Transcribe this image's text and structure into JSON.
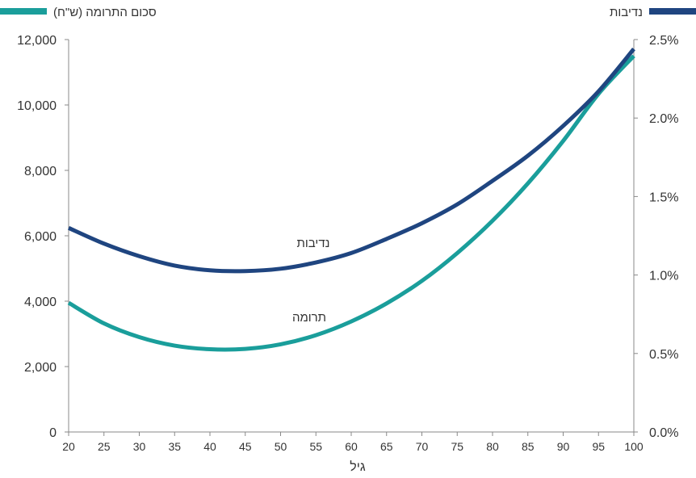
{
  "chart_data": {
    "type": "line",
    "xlabel": "גיל",
    "x_ticks": [
      "20",
      "25",
      "30",
      "35",
      "40",
      "45",
      "50",
      "55",
      "60",
      "65",
      "70",
      "75",
      "80",
      "85",
      "90",
      "95",
      "100"
    ],
    "xlim": [
      20,
      100
    ],
    "y_left": {
      "ylim": [
        0,
        12000
      ],
      "ticks": [
        0,
        2000,
        4000,
        6000,
        8000,
        10000,
        12000
      ],
      "tick_labels": [
        "0",
        "2,000",
        "4,000",
        "6,000",
        "8,000",
        "10,000",
        "12,000"
      ]
    },
    "y_right": {
      "ylim": [
        0,
        2.5
      ],
      "ticks": [
        0,
        0.5,
        1,
        1.5,
        2,
        2.5
      ],
      "tick_labels": [
        "0.0%",
        "0.5%",
        "1.0%",
        "1.5%",
        "2.0%",
        "2.5%"
      ]
    },
    "legend": {
      "left": {
        "label": "סכום התרומה (ש\"ח)",
        "color": "#1a9e9b"
      },
      "right": {
        "label": "נדיבות",
        "color": "#1f4580"
      }
    },
    "series": [
      {
        "name": "סכום התרומה (ש\"ח)",
        "axis": "left",
        "color": "#1a9e9b",
        "x": [
          20,
          25,
          30,
          35,
          40,
          45,
          50,
          55,
          60,
          65,
          70,
          75,
          80,
          85,
          90,
          95,
          100
        ],
        "values": [
          3950,
          3320,
          2900,
          2640,
          2530,
          2540,
          2680,
          2960,
          3380,
          3930,
          4620,
          5470,
          6460,
          7600,
          8900,
          10340,
          11500
        ]
      },
      {
        "name": "נדיבות",
        "axis": "right",
        "color": "#1f4580",
        "x": [
          20,
          25,
          30,
          35,
          40,
          45,
          50,
          55,
          60,
          65,
          70,
          75,
          80,
          85,
          90,
          95,
          100
        ],
        "values": [
          1.3,
          1.2,
          1.12,
          1.06,
          1.03,
          1.025,
          1.04,
          1.08,
          1.14,
          1.23,
          1.33,
          1.45,
          1.6,
          1.76,
          1.95,
          2.17,
          2.44
        ]
      }
    ],
    "annotations": [
      {
        "text": "נדיבות",
        "series": "נדיבות"
      },
      {
        "text": "תרומה",
        "series": "סכום התרומה (ש\"ח)"
      }
    ]
  }
}
